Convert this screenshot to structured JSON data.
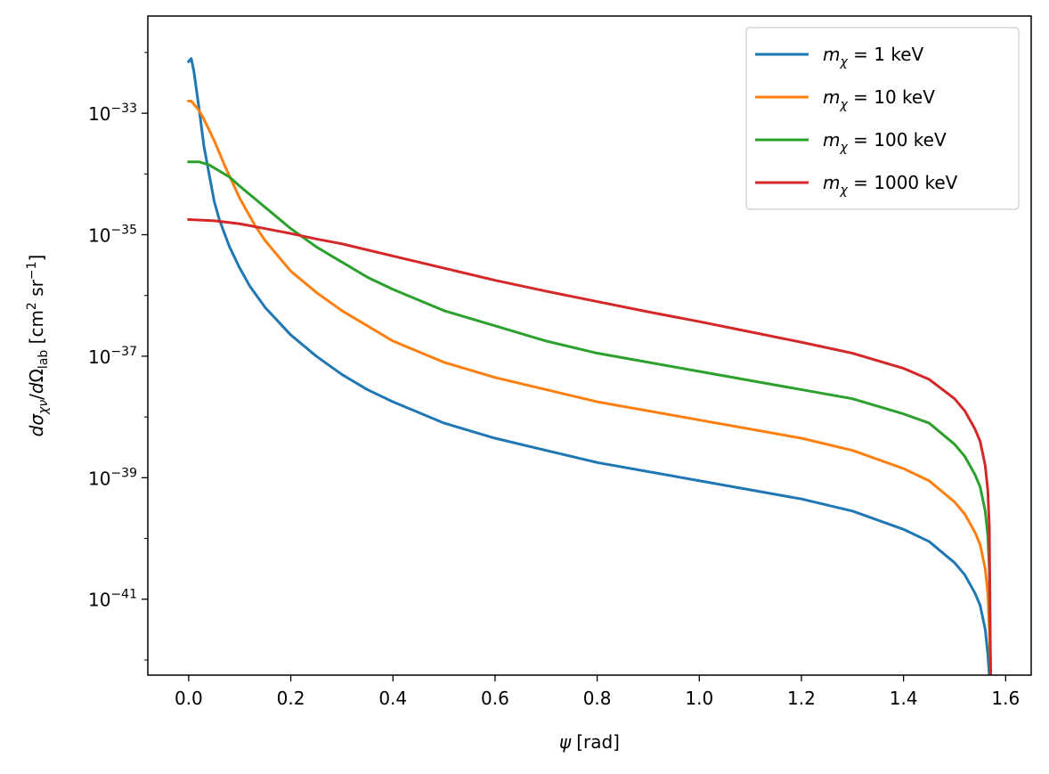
{
  "chart_data": {
    "type": "line",
    "title": "",
    "xlabel": {
      "symbol": "ψ",
      "unit": "[rad]"
    },
    "ylabel": {
      "text": "dσχν/dΩlab [cm2 sr−1]",
      "parts": {
        "d1": "d",
        "sigma": "σ",
        "sigma_sub": "χν",
        "slash": "/",
        "d2": "d",
        "omega": "Ω",
        "omega_sub": "lab",
        "unit_open": " [cm",
        "unit_exp1": "2",
        "unit_mid": " sr",
        "unit_exp2": "−1",
        "unit_close": "]"
      }
    },
    "xlim": [
      -0.08,
      1.65
    ],
    "ylim_log10": [
      -42.25,
      -31.4
    ],
    "xticks": [
      {
        "value": 0.0,
        "label": "0.0"
      },
      {
        "value": 0.2,
        "label": "0.2"
      },
      {
        "value": 0.4,
        "label": "0.4"
      },
      {
        "value": 0.6,
        "label": "0.6"
      },
      {
        "value": 0.8,
        "label": "0.8"
      },
      {
        "value": 1.0,
        "label": "1.0"
      },
      {
        "value": 1.2,
        "label": "1.2"
      },
      {
        "value": 1.4,
        "label": "1.4"
      },
      {
        "value": 1.6,
        "label": "1.6"
      }
    ],
    "yticks": [
      {
        "exp": -33,
        "base": "10",
        "label": "−33"
      },
      {
        "exp": -35,
        "base": "10",
        "label": "−35"
      },
      {
        "exp": -37,
        "base": "10",
        "label": "−37"
      },
      {
        "exp": -39,
        "base": "10",
        "label": "−39"
      },
      {
        "exp": -41,
        "base": "10",
        "label": "−41"
      }
    ],
    "legend": {
      "placement": "top-right"
    },
    "series": [
      {
        "name": "mχ = 1 keV",
        "label_prefix": "m",
        "label_sub": "χ",
        "label_value": " = 1 keV",
        "color": "#1f77b4",
        "x": [
          0.0,
          0.005,
          0.01,
          0.02,
          0.03,
          0.04,
          0.05,
          0.06,
          0.08,
          0.1,
          0.12,
          0.15,
          0.2,
          0.25,
          0.3,
          0.35,
          0.4,
          0.5,
          0.6,
          0.7,
          0.8,
          0.9,
          1.0,
          1.1,
          1.2,
          1.3,
          1.4,
          1.45,
          1.5,
          1.52,
          1.54,
          1.55,
          1.56,
          1.565,
          1.568,
          1.5705
        ],
        "log10_y": [
          -32.15,
          -32.1,
          -32.3,
          -32.9,
          -33.55,
          -34.0,
          -34.45,
          -34.75,
          -35.2,
          -35.55,
          -35.85,
          -36.2,
          -36.65,
          -37.0,
          -37.3,
          -37.55,
          -37.75,
          -38.1,
          -38.35,
          -38.55,
          -38.75,
          -38.9,
          -39.05,
          -39.2,
          -39.35,
          -39.55,
          -39.85,
          -40.05,
          -40.4,
          -40.6,
          -40.9,
          -41.1,
          -41.5,
          -41.9,
          -42.25,
          -42.25
        ]
      },
      {
        "name": "mχ = 10 keV",
        "label_prefix": "m",
        "label_sub": "χ",
        "label_value": " = 10 keV",
        "color": "#ff7f0e",
        "x": [
          0.0,
          0.005,
          0.01,
          0.02,
          0.03,
          0.05,
          0.07,
          0.1,
          0.13,
          0.15,
          0.2,
          0.25,
          0.3,
          0.35,
          0.4,
          0.5,
          0.6,
          0.7,
          0.8,
          0.9,
          1.0,
          1.1,
          1.2,
          1.3,
          1.4,
          1.45,
          1.5,
          1.52,
          1.54,
          1.55,
          1.56,
          1.565,
          1.568,
          1.5705
        ],
        "log10_y": [
          -32.8,
          -32.8,
          -32.85,
          -32.95,
          -33.1,
          -33.45,
          -33.85,
          -34.4,
          -34.85,
          -35.1,
          -35.6,
          -35.95,
          -36.25,
          -36.5,
          -36.75,
          -37.1,
          -37.35,
          -37.55,
          -37.75,
          -37.9,
          -38.05,
          -38.2,
          -38.35,
          -38.55,
          -38.85,
          -39.05,
          -39.4,
          -39.6,
          -39.9,
          -40.1,
          -40.5,
          -40.9,
          -41.5,
          -42.25
        ]
      },
      {
        "name": "mχ = 100 keV",
        "label_prefix": "m",
        "label_sub": "χ",
        "label_value": " = 100 keV",
        "color": "#2ca02c",
        "x": [
          0.0,
          0.02,
          0.04,
          0.06,
          0.08,
          0.1,
          0.15,
          0.2,
          0.25,
          0.3,
          0.35,
          0.4,
          0.5,
          0.6,
          0.7,
          0.8,
          0.9,
          1.0,
          1.1,
          1.2,
          1.3,
          1.4,
          1.45,
          1.5,
          1.52,
          1.54,
          1.55,
          1.56,
          1.565,
          1.568,
          1.5705
        ],
        "log10_y": [
          -33.8,
          -33.8,
          -33.85,
          -33.95,
          -34.05,
          -34.2,
          -34.55,
          -34.9,
          -35.2,
          -35.45,
          -35.7,
          -35.9,
          -36.25,
          -36.5,
          -36.75,
          -36.95,
          -37.1,
          -37.25,
          -37.4,
          -37.55,
          -37.7,
          -37.95,
          -38.1,
          -38.45,
          -38.65,
          -38.95,
          -39.15,
          -39.55,
          -39.95,
          -40.5,
          -42.25
        ]
      },
      {
        "name": "mχ = 1000 keV",
        "label_prefix": "m",
        "label_sub": "χ",
        "label_value": " = 1000 keV",
        "color": "#d62728",
        "x": [
          0.0,
          0.05,
          0.1,
          0.15,
          0.2,
          0.25,
          0.3,
          0.4,
          0.5,
          0.6,
          0.7,
          0.8,
          0.9,
          1.0,
          1.1,
          1.2,
          1.3,
          1.4,
          1.45,
          1.5,
          1.52,
          1.54,
          1.55,
          1.56,
          1.565,
          1.568,
          1.5705
        ],
        "log10_y": [
          -34.75,
          -34.77,
          -34.82,
          -34.9,
          -34.98,
          -35.07,
          -35.15,
          -35.35,
          -35.55,
          -35.75,
          -35.93,
          -36.1,
          -36.27,
          -36.43,
          -36.6,
          -36.77,
          -36.95,
          -37.2,
          -37.38,
          -37.7,
          -37.9,
          -38.2,
          -38.4,
          -38.8,
          -39.2,
          -39.8,
          -42.25
        ]
      }
    ]
  }
}
